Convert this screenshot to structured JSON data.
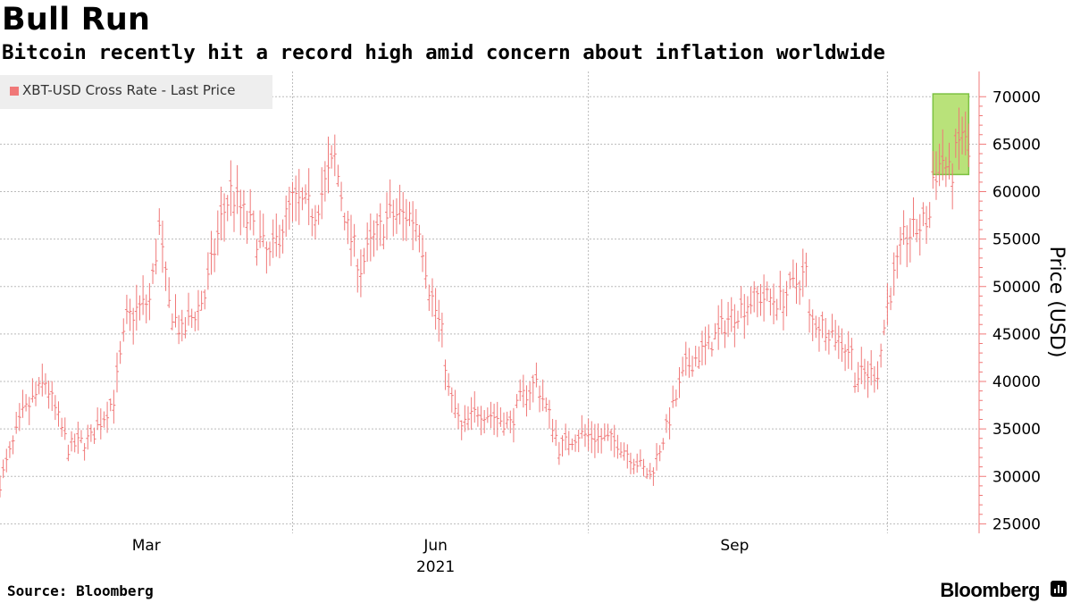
{
  "header": {
    "title": "Bull Run",
    "subtitle": "Bitcoin recently hit a record high amid concern about inflation worldwide"
  },
  "footer": {
    "source": "Source: Bloomberg",
    "brand": "Bloomberg"
  },
  "colors": {
    "series": "#f07878",
    "highlight_fill": "#b9e27a",
    "highlight_stroke": "#7dc142",
    "axis": "#f07878",
    "grid": "#bbbbbb"
  },
  "chart_data": {
    "type": "ohlc",
    "title": "Bull Run",
    "subtitle": "Bitcoin recently hit a record high amid concern about inflation worldwide",
    "ylabel": "Price (USD)",
    "ylim": [
      24000,
      72000
    ],
    "y_ticks": [
      25000,
      30000,
      35000,
      40000,
      45000,
      50000,
      55000,
      60000,
      65000,
      70000
    ],
    "y_tick_labels": [
      "25000",
      "30000",
      "35000",
      "40000",
      "45000",
      "50000",
      "55000",
      "60000",
      "65000",
      "70000"
    ],
    "x_tick_labels": [
      "Mar",
      "Jun",
      "Sep"
    ],
    "x_year_label": "2021",
    "x_start": "2021-01-01",
    "x_end": "2021-10-27",
    "grid": true,
    "legend": {
      "position": "top-left",
      "entries": [
        "XBT-USD Cross Rate - Last Price"
      ]
    },
    "highlight": {
      "x_from": "2021-10-15",
      "x_to": "2021-10-26",
      "y_from": 61800,
      "y_to": 70300
    },
    "series": [
      {
        "name": "XBT-USD Cross Rate - Last Price",
        "x": [
          "2021-01-01",
          "2021-01-08",
          "2021-01-15",
          "2021-01-22",
          "2021-01-29",
          "2021-02-05",
          "2021-02-09",
          "2021-02-12",
          "2021-02-16",
          "2021-02-19",
          "2021-02-22",
          "2021-02-26",
          "2021-03-05",
          "2021-03-10",
          "2021-03-13",
          "2021-03-18",
          "2021-03-25",
          "2021-04-01",
          "2021-04-08",
          "2021-04-14",
          "2021-04-18",
          "2021-04-22",
          "2021-04-26",
          "2021-05-01",
          "2021-05-07",
          "2021-05-10",
          "2021-05-13",
          "2021-05-17",
          "2021-05-19",
          "2021-05-23",
          "2021-05-28",
          "2021-06-01",
          "2021-06-07",
          "2021-06-10",
          "2021-06-15",
          "2021-06-20",
          "2021-06-22",
          "2021-06-28",
          "2021-07-05",
          "2021-07-10",
          "2021-07-15",
          "2021-07-20",
          "2021-07-25",
          "2021-07-31",
          "2021-08-07",
          "2021-08-14",
          "2021-08-22",
          "2021-08-29",
          "2021-09-06",
          "2021-09-07",
          "2021-09-12",
          "2021-09-20",
          "2021-09-21",
          "2021-09-28",
          "2021-10-01",
          "2021-10-06",
          "2021-10-10",
          "2021-10-14",
          "2021-10-15",
          "2021-10-18",
          "2021-10-20",
          "2021-10-21",
          "2021-10-24",
          "2021-10-26"
        ],
        "values": [
          29300,
          36500,
          40000,
          33000,
          34000,
          38200,
          46500,
          47500,
          48500,
          56000,
          48000,
          45000,
          49000,
          57000,
          60000,
          57000,
          53000,
          59000,
          58000,
          63500,
          56000,
          52000,
          55000,
          57500,
          57500,
          56500,
          50000,
          45000,
          39000,
          35000,
          37000,
          36500,
          35500,
          38000,
          40000,
          35500,
          33000,
          34500,
          34000,
          33600,
          31800,
          30000,
          35000,
          41500,
          43800,
          47000,
          49000,
          48500,
          51500,
          46500,
          45800,
          43000,
          40500,
          41000,
          48100,
          55000,
          56000,
          57300,
          61500,
          63500,
          61700,
          62200,
          66500,
          63500
        ]
      }
    ]
  }
}
